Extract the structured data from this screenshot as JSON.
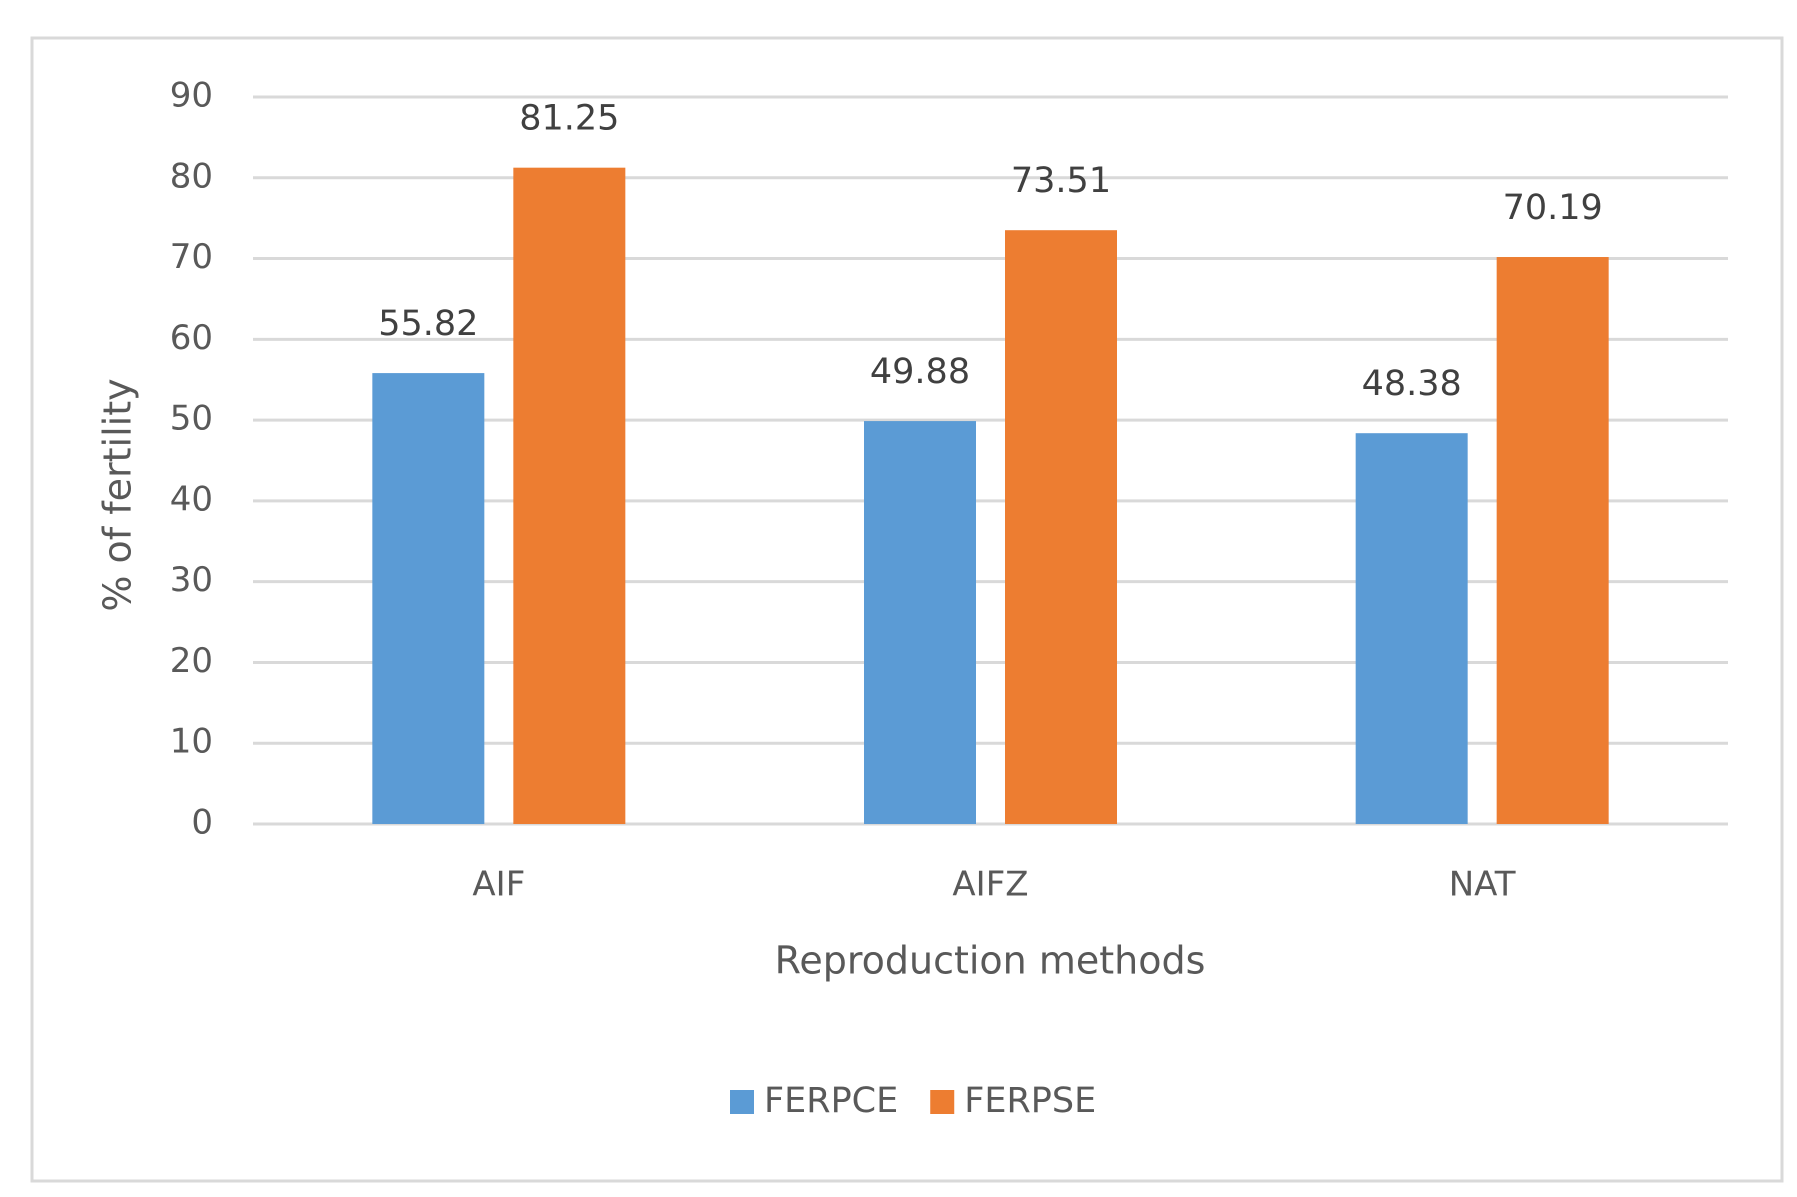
{
  "chart_data": {
    "type": "bar",
    "x_label": "Reproduction methods",
    "y_label": "% of fertility",
    "categories": [
      "AIF",
      "AIFZ",
      "NAT"
    ],
    "series": [
      {
        "name": "FERPCE",
        "color": "#5b9bd5",
        "values": [
          55.82,
          49.88,
          48.38
        ]
      },
      {
        "name": "FERPSE",
        "color": "#ed7d31",
        "values": [
          81.25,
          73.51,
          70.19
        ]
      }
    ],
    "ylim": [
      0,
      90
    ],
    "yticks": [
      0,
      10,
      20,
      30,
      40,
      50,
      60,
      70,
      80,
      90
    ],
    "grid": true,
    "legend": "bottom"
  }
}
